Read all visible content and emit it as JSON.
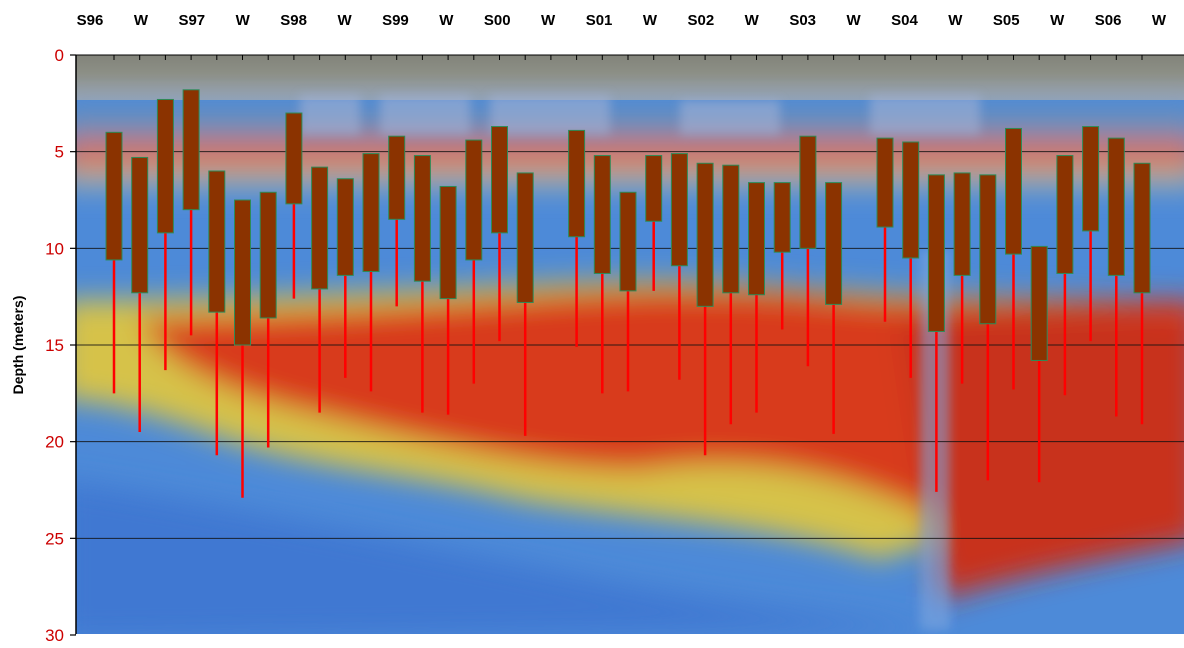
{
  "chart_data": {
    "type": "candlestick-range",
    "ylabel": "Depth (meters)",
    "ylim": [
      0,
      30
    ],
    "y_inverted": true,
    "y_ticks": [
      0,
      5,
      10,
      15,
      20,
      25,
      30
    ],
    "grid": "horizontal",
    "top_labels": [
      "S96",
      "W",
      "S97",
      "W",
      "S98",
      "W",
      "S99",
      "W",
      "S00",
      "W",
      "S01",
      "W",
      "S02",
      "W",
      "S03",
      "W",
      "S04",
      "W",
      "S05",
      "W",
      "S06",
      "W"
    ],
    "box_color": "#8b3300",
    "box_border_color": "#2e8b57",
    "whisker_color": "#ff0000",
    "background": "blurred sonar echogram photograph",
    "series": [
      {
        "box_top": 4.0,
        "box_bottom": 10.6,
        "whisker_bottom": 17.5
      },
      {
        "box_top": 5.3,
        "box_bottom": 12.3,
        "whisker_bottom": 19.5
      },
      {
        "box_top": 2.3,
        "box_bottom": 9.2,
        "whisker_bottom": 16.3
      },
      {
        "box_top": 1.8,
        "box_bottom": 8.0,
        "whisker_bottom": 14.5
      },
      {
        "box_top": 6.0,
        "box_bottom": 13.3,
        "whisker_bottom": 20.7
      },
      {
        "box_top": 7.5,
        "box_bottom": 15.0,
        "whisker_bottom": 22.9
      },
      {
        "box_top": 7.1,
        "box_bottom": 13.6,
        "whisker_bottom": 20.3
      },
      {
        "box_top": 3.0,
        "box_bottom": 7.7,
        "whisker_bottom": 12.6
      },
      {
        "box_top": 5.8,
        "box_bottom": 12.1,
        "whisker_bottom": 18.5
      },
      {
        "box_top": 6.4,
        "box_bottom": 11.4,
        "whisker_bottom": 16.7
      },
      {
        "box_top": 5.1,
        "box_bottom": 11.2,
        "whisker_bottom": 17.4
      },
      {
        "box_top": 4.2,
        "box_bottom": 8.5,
        "whisker_bottom": 13.0
      },
      {
        "box_top": 5.2,
        "box_bottom": 11.7,
        "whisker_bottom": 18.5
      },
      {
        "box_top": 6.8,
        "box_bottom": 12.6,
        "whisker_bottom": 18.6
      },
      {
        "box_top": 4.4,
        "box_bottom": 10.6,
        "whisker_bottom": 17.0
      },
      {
        "box_top": 3.7,
        "box_bottom": 9.2,
        "whisker_bottom": 14.8
      },
      {
        "box_top": 6.1,
        "box_bottom": 12.8,
        "whisker_bottom": 19.7
      },
      null,
      {
        "box_top": 3.9,
        "box_bottom": 9.4,
        "whisker_bottom": 15.1
      },
      {
        "box_top": 5.2,
        "box_bottom": 11.3,
        "whisker_bottom": 17.5
      },
      {
        "box_top": 7.1,
        "box_bottom": 12.2,
        "whisker_bottom": 17.4
      },
      {
        "box_top": 5.2,
        "box_bottom": 8.6,
        "whisker_bottom": 12.2
      },
      {
        "box_top": 5.1,
        "box_bottom": 10.9,
        "whisker_bottom": 16.8
      },
      {
        "box_top": 5.6,
        "box_bottom": 13.0,
        "whisker_bottom": 20.7
      },
      {
        "box_top": 5.7,
        "box_bottom": 12.3,
        "whisker_bottom": 19.1
      },
      {
        "box_top": 6.6,
        "box_bottom": 12.4,
        "whisker_bottom": 18.5
      },
      {
        "box_top": 6.6,
        "box_bottom": 10.2,
        "whisker_bottom": 14.2
      },
      {
        "box_top": 4.2,
        "box_bottom": 10.0,
        "whisker_bottom": 16.1
      },
      {
        "box_top": 6.6,
        "box_bottom": 12.9,
        "whisker_bottom": 19.6
      },
      null,
      {
        "box_top": 4.3,
        "box_bottom": 8.9,
        "whisker_bottom": 13.8
      },
      {
        "box_top": 4.5,
        "box_bottom": 10.5,
        "whisker_bottom": 16.7
      },
      {
        "box_top": 6.2,
        "box_bottom": 14.3,
        "whisker_bottom": 22.6
      },
      {
        "box_top": 6.1,
        "box_bottom": 11.4,
        "whisker_bottom": 17.0
      },
      {
        "box_top": 6.2,
        "box_bottom": 13.9,
        "whisker_bottom": 22.0
      },
      {
        "box_top": 3.8,
        "box_bottom": 10.3,
        "whisker_bottom": 17.3
      },
      {
        "box_top": 9.9,
        "box_bottom": 15.8,
        "whisker_bottom": 22.1
      },
      {
        "box_top": 5.2,
        "box_bottom": 11.3,
        "whisker_bottom": 17.6
      },
      {
        "box_top": 3.7,
        "box_bottom": 9.1,
        "whisker_bottom": 14.8
      },
      {
        "box_top": 4.3,
        "box_bottom": 11.4,
        "whisker_bottom": 18.7
      },
      {
        "box_top": 5.6,
        "box_bottom": 12.3,
        "whisker_bottom": 19.1
      }
    ]
  }
}
